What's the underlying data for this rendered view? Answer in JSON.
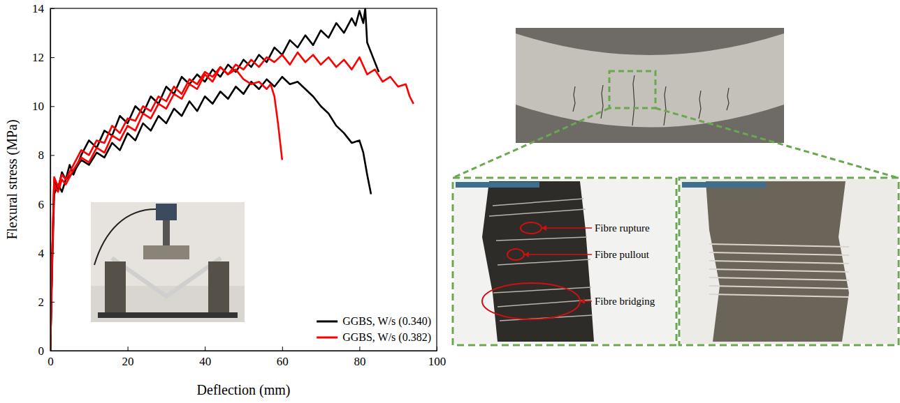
{
  "chart_data": {
    "type": "line",
    "x_label": "Deflection (mm)",
    "y_label": "Flexural stress (MPa)",
    "xlim": [
      0,
      100
    ],
    "xticks": [
      0,
      20,
      40,
      60,
      80,
      100
    ],
    "ylim": [
      0,
      14
    ],
    "yticks": [
      0,
      2,
      4,
      6,
      8,
      10,
      12,
      14
    ],
    "grid": false,
    "legend": "lower right",
    "series": [
      {
        "name": "GGBS, W/s (0.340)",
        "color": "#000000",
        "x": [
          0,
          0.5,
          1,
          2,
          3,
          4,
          5,
          6,
          8,
          10,
          12,
          14,
          16,
          18,
          20,
          22,
          24,
          26,
          28,
          30,
          32,
          34,
          36,
          38,
          40,
          42,
          44,
          46,
          48,
          50,
          52,
          54,
          56,
          58,
          60,
          62,
          64,
          66,
          68,
          70,
          72,
          74,
          76,
          78,
          79,
          80,
          81,
          81.5,
          82,
          83,
          84,
          85
        ],
        "values": [
          0,
          4,
          7.0,
          6.6,
          7.3,
          7.0,
          7.6,
          7.2,
          8.0,
          8.6,
          8.3,
          9.0,
          8.8,
          9.6,
          9.3,
          10.0,
          9.7,
          10.4,
          10.1,
          10.8,
          10.5,
          11.2,
          10.9,
          11.3,
          11.0,
          11.5,
          11.2,
          11.7,
          11.4,
          11.9,
          11.6,
          12.1,
          11.8,
          12.4,
          12.1,
          12.7,
          12.4,
          12.9,
          12.5,
          13.1,
          12.8,
          13.4,
          13.0,
          13.6,
          13.3,
          13.9,
          13.4,
          14.0,
          12.6,
          12.2,
          11.8,
          11.4
        ]
      },
      {
        "name": "GGBS, W/s (0.340)",
        "color": "#000000",
        "x": [
          0,
          0.5,
          1,
          2,
          3,
          4,
          6,
          8,
          10,
          12,
          14,
          16,
          18,
          20,
          22,
          24,
          26,
          28,
          30,
          32,
          34,
          36,
          38,
          40,
          42,
          44,
          46,
          48,
          50,
          52,
          54,
          56,
          58,
          60,
          62,
          64,
          66,
          68,
          70,
          72,
          74,
          76,
          78,
          80,
          81,
          82,
          83
        ],
        "values": [
          0,
          3.5,
          6.4,
          6.8,
          6.5,
          7.0,
          7.3,
          7.8,
          7.6,
          8.1,
          7.9,
          8.5,
          8.2,
          8.9,
          8.6,
          9.3,
          9.0,
          9.6,
          9.3,
          9.9,
          9.6,
          10.2,
          9.8,
          10.4,
          10.1,
          10.6,
          10.3,
          10.8,
          10.5,
          11.0,
          10.7,
          11.1,
          10.8,
          11.2,
          10.9,
          11.0,
          10.7,
          10.4,
          10.0,
          9.7,
          9.2,
          8.9,
          8.5,
          8.6,
          8.1,
          7.2,
          6.4
        ]
      },
      {
        "name": "GGBS, W/s (0.382)",
        "color": "#ff0000",
        "x": [
          0,
          0.5,
          1,
          2,
          3,
          4,
          6,
          8,
          10,
          12,
          14,
          16,
          18,
          20,
          22,
          24,
          26,
          28,
          30,
          32,
          34,
          36,
          38,
          40,
          42,
          44,
          46,
          48,
          50,
          52,
          54,
          56,
          57,
          58,
          59,
          60
        ],
        "values": [
          0,
          4,
          7.1,
          6.7,
          7.2,
          7.0,
          7.6,
          8.2,
          8.0,
          8.6,
          8.5,
          9.2,
          8.9,
          9.5,
          9.4,
          10.0,
          9.8,
          10.4,
          10.2,
          10.8,
          10.5,
          11.1,
          10.9,
          11.4,
          11.2,
          11.6,
          11.3,
          11.5,
          11.1,
          10.9,
          11.0,
          10.7,
          10.9,
          10.4,
          9.2,
          7.8
        ]
      },
      {
        "name": "GGBS, W/s (0.382)",
        "color": "#ff0000",
        "x": [
          0,
          0.5,
          1,
          2,
          3,
          4,
          6,
          8,
          10,
          12,
          14,
          16,
          18,
          20,
          22,
          24,
          26,
          28,
          30,
          32,
          34,
          36,
          38,
          40,
          42,
          44,
          46,
          48,
          50,
          52,
          54,
          56,
          58,
          60,
          62,
          64,
          66,
          68,
          70,
          72,
          74,
          76,
          78,
          80,
          82,
          84,
          86,
          88,
          90,
          92,
          93,
          94
        ],
        "values": [
          0,
          4,
          6.8,
          6.5,
          7.0,
          6.8,
          7.4,
          7.9,
          7.7,
          8.3,
          8.1,
          8.8,
          8.6,
          9.2,
          9.0,
          9.7,
          9.5,
          10.1,
          9.9,
          10.5,
          10.3,
          10.9,
          10.7,
          11.3,
          11.0,
          11.6,
          11.3,
          11.7,
          11.5,
          11.9,
          11.6,
          12.0,
          11.8,
          12.1,
          11.7,
          12.2,
          11.8,
          12.1,
          11.7,
          12.0,
          11.6,
          11.9,
          11.5,
          12.0,
          11.3,
          11.5,
          11.0,
          11.2,
          10.8,
          10.9,
          10.4,
          10.1
        ]
      }
    ]
  },
  "micrograph": {
    "labels": [
      "Fibre rupture",
      "Fibre pullout",
      "Fibre bridging"
    ]
  }
}
